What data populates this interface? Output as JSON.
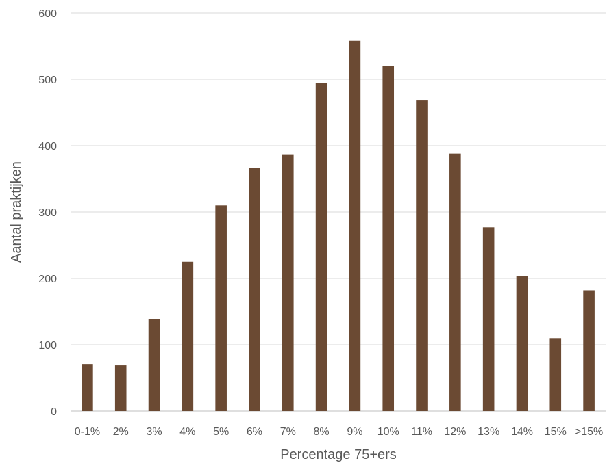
{
  "chart_data": {
    "type": "bar",
    "title": "",
    "xlabel": "Percentage 75+ers",
    "ylabel": "Aantal praktijken",
    "categories": [
      "0-1%",
      "2%",
      "3%",
      "4%",
      "5%",
      "6%",
      "7%",
      "8%",
      "9%",
      "10%",
      "11%",
      "12%",
      "13%",
      "14%",
      "15%",
      ">15%"
    ],
    "values": [
      71,
      69,
      139,
      225,
      310,
      367,
      387,
      494,
      558,
      520,
      469,
      388,
      277,
      204,
      110,
      182
    ],
    "ylim": [
      0,
      600
    ],
    "yticks": [
      0,
      100,
      200,
      300,
      400,
      500,
      600
    ],
    "grid": true,
    "legend": "none",
    "bar_color": "#6b4a33"
  }
}
